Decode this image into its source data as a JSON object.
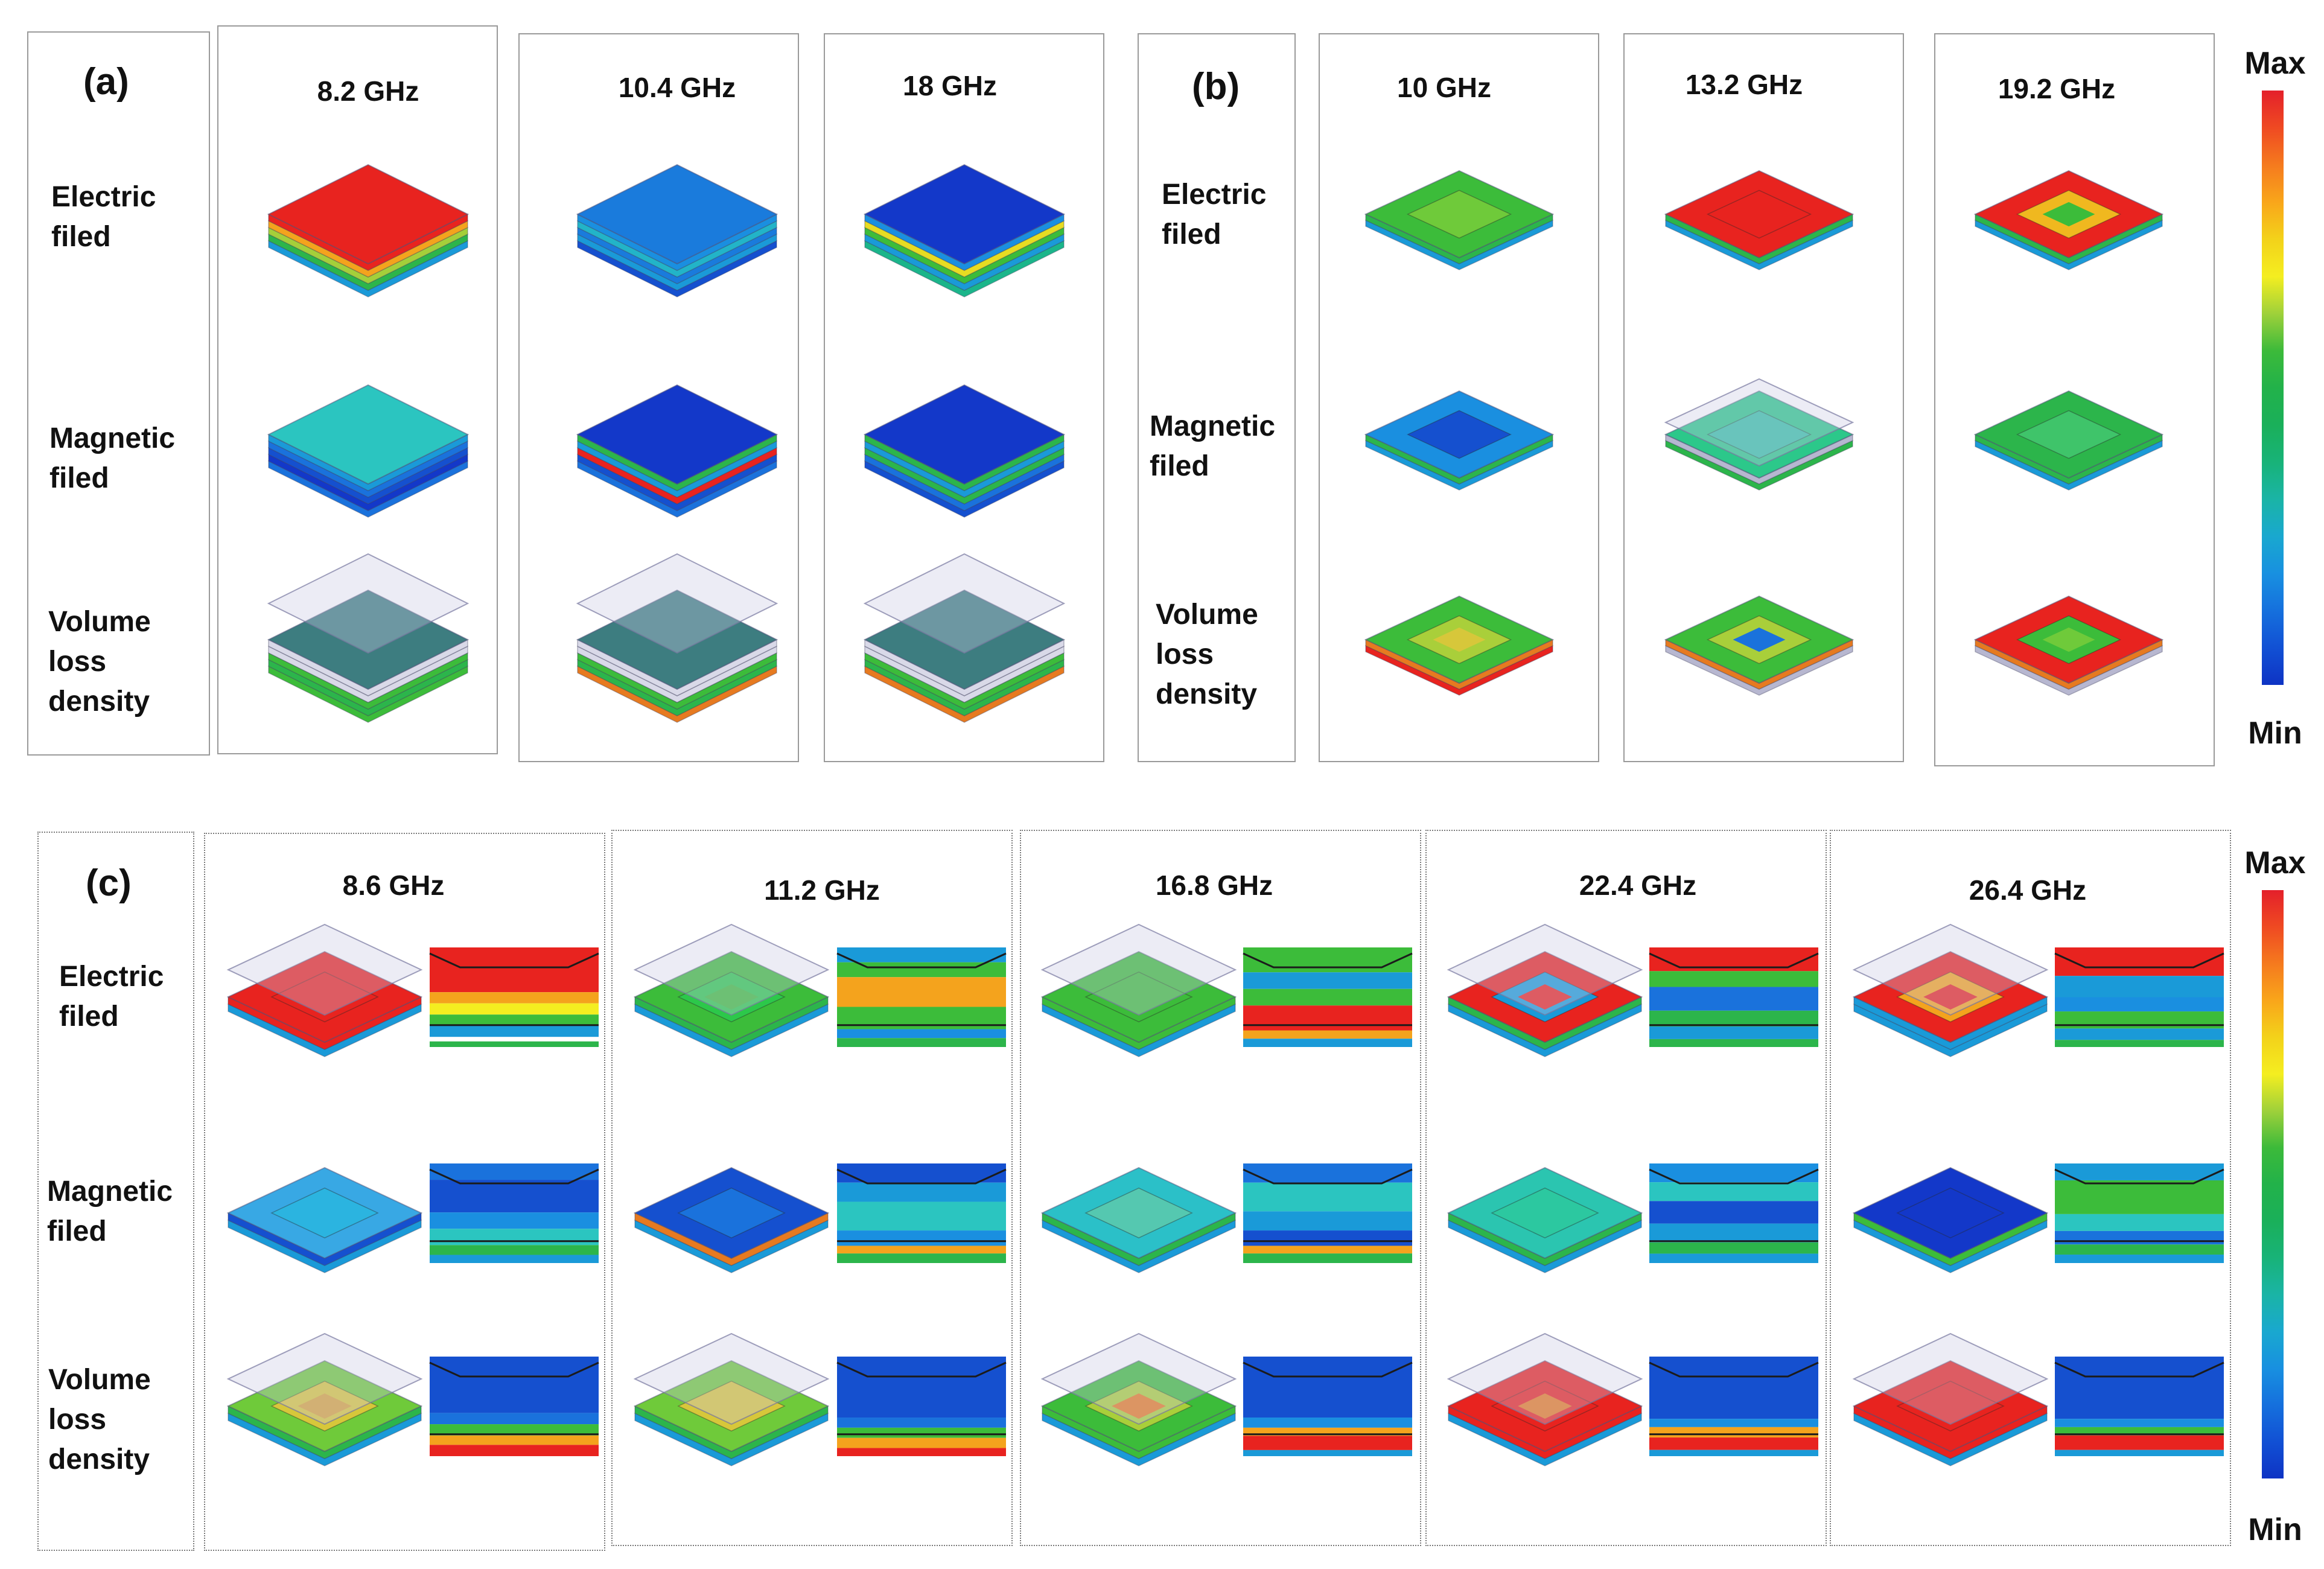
{
  "panels": {
    "a": {
      "label": "(a)",
      "rows": [
        "Electric filed",
        "Magnetic filed",
        "Volume loss density"
      ],
      "frequencies": [
        "8.2 GHz",
        "10.4 GHz",
        "18 GHz"
      ]
    },
    "b": {
      "label": "(b)",
      "rows": [
        "Electric filed",
        "Magnetic filed",
        "Volume loss density"
      ],
      "frequencies": [
        "10 GHz",
        "13.2 GHz",
        "19.2 GHz"
      ]
    },
    "c": {
      "label": "(c)",
      "rows": [
        "Electric filed",
        "Magnetic filed",
        "Volume loss density"
      ],
      "frequencies": [
        "8.6 GHz",
        "11.2 GHz",
        "16.8 GHz",
        "22.4 GHz",
        "26.4 GHz"
      ]
    }
  },
  "colorbar": {
    "max_label": "Max",
    "min_label": "Min",
    "colors": [
      "#e4202a",
      "#ef4a22",
      "#f57a1e",
      "#f9a61a",
      "#f3d21a",
      "#f4ee20",
      "#9fd13a",
      "#3cba3a",
      "#22b24a",
      "#1ab05a",
      "#18b378",
      "#1ab4a6",
      "#19a8cf",
      "#1890e0",
      "#1570dd",
      "#1150d4",
      "#0e33c4"
    ]
  },
  "palette": {
    "red": "#e8231f",
    "blue": "#1330c8",
    "green": "#3cbc3a",
    "cyan": "#2bc5c0",
    "teal": "#3d7d80"
  }
}
